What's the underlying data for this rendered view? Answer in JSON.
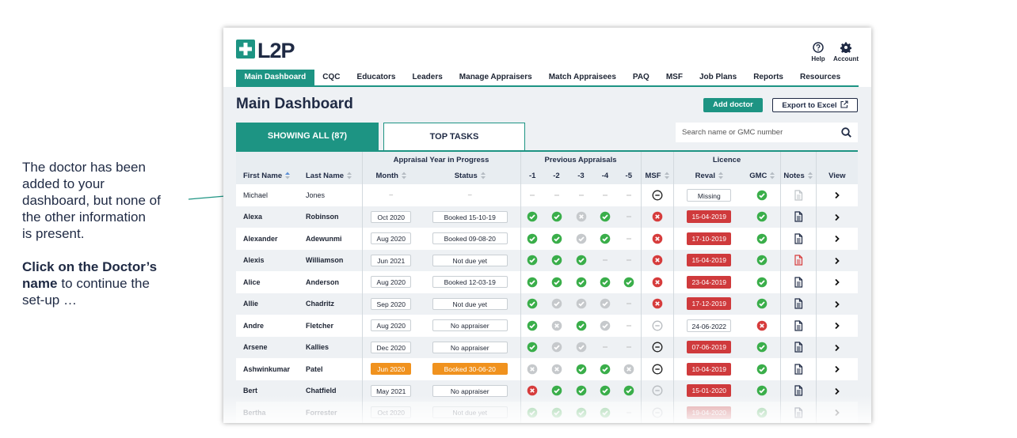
{
  "annotation": {
    "note_lines": [
      "The doctor has been",
      "added to your",
      "dashboard, but none of",
      "the other information",
      "is present."
    ],
    "action_bold_lines": [
      "Click on the Doctor’s",
      "name"
    ],
    "action_rest_lines": [
      "to continue the",
      "set-up …"
    ]
  },
  "header": {
    "logo": "L2P",
    "help": "Help",
    "account": "Account",
    "nav": [
      "Main Dashboard",
      "CQC",
      "Educators",
      "Leaders",
      "Manage Appraisers",
      "Match Appraisees",
      "PAQ",
      "MSF",
      "Job Plans",
      "Reports",
      "Resources"
    ]
  },
  "page": {
    "title": "Main Dashboard",
    "add_button": "Add doctor",
    "export_button": "Export to Excel",
    "tabs": [
      "SHOWING ALL (87)",
      "TOP TASKS"
    ],
    "search_placeholder": "Search name or GMC number"
  },
  "table": {
    "groups": [
      "Appraisal Year in Progress",
      "Previous Appraisals",
      "Licence"
    ],
    "columns": [
      "First Name",
      "Last Name",
      "Month",
      "Status",
      "-1",
      "-2",
      "-3",
      "-4",
      "-5",
      "MSF",
      "Reval",
      "GMC",
      "Notes",
      "View"
    ],
    "rows": [
      {
        "first": "Michael",
        "last": "Jones",
        "month": "–",
        "status": "–",
        "box_style": "text",
        "previous": [
          "dash",
          "dash",
          "dash",
          "dash",
          "dash"
        ],
        "msf": "minus",
        "reval": "Missing",
        "reval_style": "plain",
        "gmc": "check",
        "notes": "doc-faded"
      },
      {
        "first": "Alexa",
        "last": "Robinson",
        "month": "Oct 2020",
        "status": "Booked 15-10-19",
        "box_style": "box",
        "previous": [
          "check",
          "check",
          "grey-x",
          "check",
          "dash"
        ],
        "msf": "red-x",
        "reval": "15-04-2019",
        "reval_style": "red",
        "gmc": "check",
        "notes": "doc"
      },
      {
        "first": "Alexander",
        "last": "Adewunmi",
        "month": "Aug 2020",
        "status": "Booked 09-08-20",
        "box_style": "box",
        "previous": [
          "check",
          "check",
          "grey-check",
          "check",
          "dash"
        ],
        "msf": "red-x",
        "reval": "17-10-2019",
        "reval_style": "red",
        "gmc": "check",
        "notes": "doc"
      },
      {
        "first": "Alexis",
        "last": "Williamson",
        "month": "Jun 2021",
        "status": "Not due yet",
        "box_style": "box",
        "previous": [
          "check",
          "check",
          "check",
          "dash",
          "dash"
        ],
        "msf": "red-x",
        "reval": "15-04-2019",
        "reval_style": "red",
        "gmc": "check",
        "notes": "doc-red"
      },
      {
        "first": "Alice",
        "last": "Anderson",
        "month": "Aug 2020",
        "status": "Booked 12-03-19",
        "box_style": "box",
        "previous": [
          "check",
          "check",
          "check",
          "check",
          "check"
        ],
        "msf": "red-x",
        "reval": "23-04-2019",
        "reval_style": "red",
        "gmc": "check",
        "notes": "doc"
      },
      {
        "first": "Allie",
        "last": "Chadritz",
        "month": "Sep 2020",
        "status": "Not due yet",
        "box_style": "box",
        "previous": [
          "check",
          "grey-check",
          "grey-check",
          "grey-check",
          "dash"
        ],
        "msf": "red-x",
        "reval": "17-12-2019",
        "reval_style": "red",
        "gmc": "check",
        "notes": "doc"
      },
      {
        "first": "Andre",
        "last": "Fletcher",
        "month": "Aug 2020",
        "status": "No appraiser",
        "box_style": "box",
        "previous": [
          "check",
          "grey-x",
          "check",
          "grey-check",
          "dash"
        ],
        "msf": "minus-faded",
        "reval": "24-06-2022",
        "reval_style": "plain",
        "gmc": "red-x",
        "notes": "doc"
      },
      {
        "first": "Arsene",
        "last": "Kallies",
        "month": "Dec 2020",
        "status": "No appraiser",
        "box_style": "box",
        "previous": [
          "check",
          "grey-check",
          "grey-check",
          "dash",
          "dash"
        ],
        "msf": "minus",
        "reval": "07-06-2019",
        "reval_style": "red",
        "gmc": "check",
        "notes": "doc"
      },
      {
        "first": "Ashwinkumar",
        "last": "Patel",
        "month": "Jun 2020",
        "status": "Booked 30-06-20",
        "box_style": "orange",
        "previous": [
          "grey-x",
          "grey-x",
          "check",
          "check",
          "grey-x"
        ],
        "msf": "minus",
        "reval": "10-04-2019",
        "reval_style": "red",
        "gmc": "check",
        "notes": "doc"
      },
      {
        "first": "Bert",
        "last": "Chatfield",
        "month": "May 2021",
        "status": "No appraiser",
        "box_style": "box",
        "previous": [
          "red-x",
          "check",
          "check",
          "check",
          "check"
        ],
        "msf": "minus-faded",
        "reval": "15-01-2020",
        "reval_style": "red",
        "gmc": "check",
        "notes": "doc"
      },
      {
        "first": "Bertha",
        "last": "Forrester",
        "month": "Oct 2020",
        "status": "Not due yet",
        "box_style": "box",
        "previous": [
          "check",
          "check",
          "check",
          "check",
          "dash"
        ],
        "msf": "minus-faded",
        "reval": "19-04-2020",
        "reval_style": "red",
        "gmc": "check",
        "notes": "doc"
      }
    ]
  }
}
